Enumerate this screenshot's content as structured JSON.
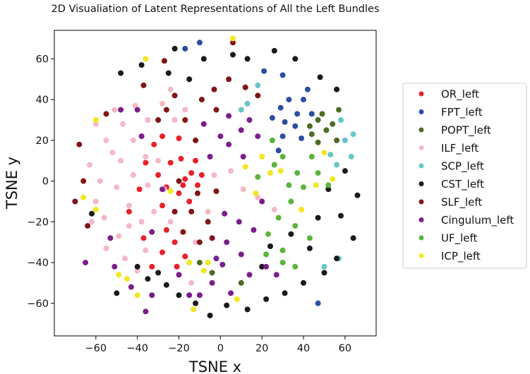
{
  "chart_data": {
    "type": "scatter",
    "title": "2D Visualiation of Latent Representations of All the Left Bundles",
    "xlabel": "TSNE x",
    "ylabel": "TSNE y",
    "xlim": [
      -80,
      75
    ],
    "ylim": [
      -76,
      74
    ],
    "xticks": [
      -60,
      -40,
      -20,
      0,
      20,
      40,
      60
    ],
    "yticks": [
      -60,
      -40,
      -20,
      0,
      20,
      40,
      60
    ],
    "grid": false,
    "legend_position": "center-right",
    "series": [
      {
        "name": "OR_left",
        "color": "#e8212a",
        "points": [
          [
            -19,
            11
          ],
          [
            -18,
            -2
          ],
          [
            -9,
            3
          ],
          [
            -14,
            4
          ],
          [
            -12,
            10
          ],
          [
            -17,
            1
          ],
          [
            -20,
            -6
          ],
          [
            -26,
            -24
          ],
          [
            -22,
            -30
          ],
          [
            -28,
            -35
          ],
          [
            -33,
            -42
          ],
          [
            -37,
            -28
          ],
          [
            -28,
            -12
          ],
          [
            -26,
            -3
          ],
          [
            -30,
            3
          ],
          [
            -24,
            9
          ],
          [
            -20,
            21
          ],
          [
            -32,
            18
          ],
          [
            -39,
            -4
          ],
          [
            -44,
            -15
          ],
          [
            -21,
            -42
          ],
          [
            -17,
            -37
          ],
          [
            -28,
            22
          ],
          [
            -11,
            -2
          ],
          [
            -15,
            -10
          ],
          [
            -36,
            9
          ]
        ]
      },
      {
        "name": "FPT_left",
        "color": "#2b4ea2",
        "points": [
          [
            33,
            40
          ],
          [
            40,
            40
          ],
          [
            44,
            33
          ],
          [
            29,
            36
          ],
          [
            36,
            27
          ],
          [
            31,
            29
          ],
          [
            39,
            21
          ],
          [
            28,
            15
          ],
          [
            30,
            22
          ],
          [
            37,
            33
          ],
          [
            25,
            31
          ],
          [
            30,
            52
          ],
          [
            42,
            45
          ],
          [
            21,
            54
          ],
          [
            47,
            -60
          ],
          [
            -17,
            65
          ],
          [
            -10,
            68
          ]
        ]
      },
      {
        "name": "POPT_left",
        "color": "#4f6b26",
        "points": [
          [
            47,
            30
          ],
          [
            54,
            28
          ],
          [
            56,
            20
          ],
          [
            47,
            19
          ],
          [
            43,
            27
          ],
          [
            51,
            25
          ],
          [
            57,
            35
          ],
          [
            44,
            23
          ],
          [
            49,
            33
          ],
          [
            -4,
            -45
          ],
          [
            10,
            -50
          ],
          [
            -10,
            -40
          ]
        ]
      },
      {
        "name": "ILF_left",
        "color": "#f4b8c6",
        "points": [
          [
            -35,
            30
          ],
          [
            -47,
            28
          ],
          [
            -55,
            20
          ],
          [
            -48,
            10
          ],
          [
            -36,
            12
          ],
          [
            -42,
            3
          ],
          [
            -50,
            -3
          ],
          [
            -44,
            -12
          ],
          [
            -38,
            -20
          ],
          [
            -49,
            -27
          ],
          [
            -56,
            -18
          ],
          [
            -58,
            0
          ],
          [
            -52,
            14
          ],
          [
            -42,
            20
          ],
          [
            -30,
            10
          ],
          [
            -27,
            -4
          ],
          [
            -32,
            -15
          ],
          [
            -24,
            -20
          ],
          [
            -36,
            -34
          ],
          [
            -46,
            -38
          ],
          [
            -55,
            -33
          ],
          [
            -41,
            37
          ],
          [
            -28,
            38
          ],
          [
            -17,
            35
          ],
          [
            -22,
            30
          ],
          [
            -60,
            -10
          ],
          [
            -63,
            8
          ],
          [
            -3,
            3
          ],
          [
            5,
            5
          ],
          [
            11,
            -4
          ],
          [
            18,
            -8
          ],
          [
            26,
            -14
          ],
          [
            -6,
            -15
          ],
          [
            -12,
            -30
          ],
          [
            -14,
            -50
          ],
          [
            -60,
            28
          ],
          [
            -51,
            35
          ],
          [
            -40,
            -44
          ],
          [
            -35,
            -2
          ],
          [
            -44,
            -22
          ],
          [
            -62,
            -20
          ],
          [
            -24,
            45
          ]
        ]
      },
      {
        "name": "SCP_left",
        "color": "#66c6c6",
        "points": [
          [
            58,
            30
          ],
          [
            60,
            20
          ],
          [
            64,
            23
          ],
          [
            53,
            13
          ],
          [
            56,
            8
          ],
          [
            63,
            12
          ],
          [
            57,
            -38
          ],
          [
            50,
            -42
          ],
          [
            18,
            47
          ],
          [
            10,
            35
          ],
          [
            13,
            38
          ]
        ]
      },
      {
        "name": "CST_left",
        "color": "#1a1a1a",
        "points": [
          [
            -30,
            -45
          ],
          [
            -35,
            -48
          ],
          [
            -26,
            -51
          ],
          [
            -20,
            -56
          ],
          [
            -12,
            -60
          ],
          [
            -5,
            -66
          ],
          [
            3,
            -61
          ],
          [
            13,
            -63
          ],
          [
            22,
            -58
          ],
          [
            31,
            -55
          ],
          [
            40,
            -50
          ],
          [
            50,
            -45
          ],
          [
            56,
            -38
          ],
          [
            64,
            -28
          ],
          [
            58,
            -17
          ],
          [
            66,
            -7
          ],
          [
            60,
            5
          ],
          [
            52,
            -4
          ],
          [
            34,
            -26
          ],
          [
            43,
            -33
          ],
          [
            47,
            -18
          ],
          [
            -25,
            53
          ],
          [
            -38,
            57
          ],
          [
            -48,
            53
          ],
          [
            -22,
            65
          ],
          [
            -8,
            60
          ],
          [
            6,
            62
          ],
          [
            26,
            64
          ],
          [
            36,
            60
          ],
          [
            48,
            51
          ],
          [
            56,
            45
          ],
          [
            13,
            60
          ],
          [
            -15,
            50
          ],
          [
            -62,
            -16
          ],
          [
            -50,
            -55
          ],
          [
            -40,
            -42
          ],
          [
            20,
            -42
          ],
          [
            24,
            -32
          ]
        ]
      },
      {
        "name": "SLF_left",
        "color": "#7f1517",
        "points": [
          [
            -3,
            45
          ],
          [
            4,
            50
          ],
          [
            12,
            46
          ],
          [
            18,
            42
          ],
          [
            -9,
            40
          ],
          [
            -22,
            42
          ],
          [
            -26,
            35
          ],
          [
            -17,
            30
          ],
          [
            -2,
            35
          ],
          [
            -14,
            -15
          ],
          [
            -6,
            -20
          ],
          [
            -18,
            -25
          ],
          [
            -10,
            -30
          ],
          [
            -22,
            -15
          ],
          [
            -11,
            -6
          ],
          [
            -2,
            -5
          ],
          [
            -20,
            0
          ],
          [
            -12,
            20
          ],
          [
            -30,
            30
          ],
          [
            -37,
            47
          ],
          [
            -55,
            33
          ],
          [
            -68,
            18
          ],
          [
            -66,
            0
          ],
          [
            -70,
            -10
          ],
          [
            -64,
            -22
          ],
          [
            -27,
            59
          ],
          [
            6,
            68
          ],
          [
            -4,
            -28
          ]
        ]
      },
      {
        "name": "Cingulum_left",
        "color": "#7a1f8a",
        "points": [
          [
            4,
            32
          ],
          [
            10,
            25
          ],
          [
            0,
            22
          ],
          [
            -5,
            12
          ],
          [
            11,
            12
          ],
          [
            18,
            22
          ],
          [
            4,
            18
          ],
          [
            14,
            30
          ],
          [
            -8,
            28
          ],
          [
            2,
            -16
          ],
          [
            9,
            -20
          ],
          [
            16,
            -24
          ],
          [
            3,
            -30
          ],
          [
            10,
            -36
          ],
          [
            1,
            -41
          ],
          [
            -4,
            -50
          ],
          [
            5,
            -55
          ],
          [
            -10,
            -56
          ],
          [
            14,
            -46
          ],
          [
            22,
            -42
          ],
          [
            27,
            -46
          ],
          [
            -2,
            -38
          ],
          [
            -28,
            -4
          ],
          [
            -51,
            -42
          ],
          [
            -53,
            -28
          ],
          [
            -65,
            -40
          ],
          [
            -43,
            -52
          ],
          [
            -36,
            -64
          ],
          [
            -20,
            -46
          ],
          [
            -15,
            -56
          ],
          [
            -40,
            35
          ],
          [
            -48,
            35
          ],
          [
            -38,
            22
          ],
          [
            -33,
            -25
          ],
          [
            20,
            -10
          ],
          [
            -33,
            -56
          ]
        ]
      },
      {
        "name": "UF_left",
        "color": "#5ab43b",
        "points": [
          [
            25,
            20
          ],
          [
            30,
            12
          ],
          [
            37,
            4
          ],
          [
            44,
            12
          ],
          [
            40,
            -3
          ],
          [
            34,
            -10
          ],
          [
            28,
            -18
          ],
          [
            36,
            -22
          ],
          [
            43,
            -28
          ],
          [
            23,
            -26
          ],
          [
            30,
            -34
          ],
          [
            18,
            2
          ],
          [
            47,
            4
          ],
          [
            52,
            -2
          ],
          [
            22,
            -36
          ],
          [
            30,
            -40
          ],
          [
            36,
            -42
          ],
          [
            26,
            8
          ],
          [
            33,
            -2
          ]
        ]
      },
      {
        "name": "ICP_left",
        "color": "#f3e722",
        "points": [
          [
            12,
            7
          ],
          [
            20,
            12
          ],
          [
            24,
            4
          ],
          [
            17,
            -6
          ],
          [
            39,
            -14
          ],
          [
            46,
            -2
          ],
          [
            29,
            5
          ],
          [
            50,
            14
          ],
          [
            54,
            1
          ],
          [
            -45,
            -48
          ],
          [
            -49,
            -46
          ],
          [
            -60,
            -14
          ],
          [
            -66,
            -8
          ],
          [
            -60,
            30
          ],
          [
            -40,
            -56
          ],
          [
            -36,
            60
          ],
          [
            8,
            -58
          ],
          [
            -13,
            -63
          ],
          [
            -15,
            -40
          ],
          [
            -24,
            -5
          ],
          [
            6,
            70
          ],
          [
            -8,
            -44
          ],
          [
            -6,
            -40
          ]
        ]
      }
    ]
  }
}
